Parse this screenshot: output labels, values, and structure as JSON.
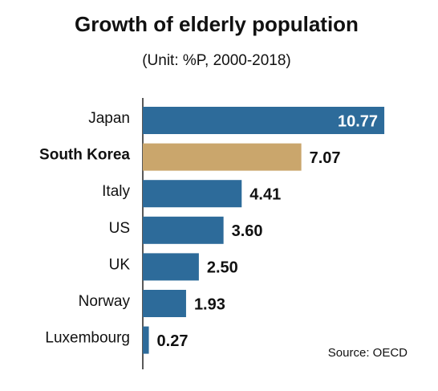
{
  "chart_data": {
    "type": "hbar",
    "title": "Growth of elderly population",
    "subtitle": "(Unit: %P, 2000-2018)",
    "categories": [
      "Japan",
      "South Korea",
      "Italy",
      "US",
      "UK",
      "Norway",
      "Luxembourg"
    ],
    "values": [
      10.77,
      7.07,
      4.41,
      3.6,
      2.5,
      1.93,
      0.27
    ],
    "value_labels": [
      "10.77",
      "7.07",
      "4.41",
      "3.60",
      "2.50",
      "1.93",
      "0.27"
    ],
    "color": "#2d6b9a",
    "colors": [
      "#2d6b9a",
      "#caa66c",
      "#2d6b9a",
      "#2d6b9a",
      "#2d6b9a",
      "#2d6b9a",
      "#2d6b9a"
    ],
    "xlim": [
      0,
      11
    ],
    "source": "Source: OECD"
  }
}
